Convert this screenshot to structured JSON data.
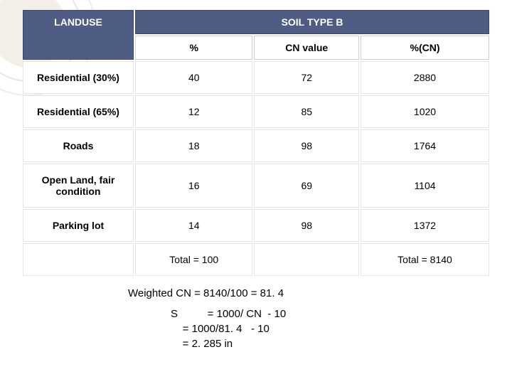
{
  "table": {
    "header_main_left": "LANDUSE",
    "header_main_right": "SOIL TYPE B",
    "subheaders": [
      "%",
      "CN value",
      "%(CN)"
    ],
    "column_widths": [
      "24%",
      "20%",
      "28%",
      "28%"
    ],
    "header_bg": "#4f5d84",
    "header_fg": "#ffffff",
    "cell_bg": "#ffffff",
    "cell_border": "#e6e4dd",
    "font_size": 14,
    "rows": [
      {
        "label": "Residential (30%)",
        "pct": "40",
        "cn": "72",
        "pcn": "2880"
      },
      {
        "label": "Residential (65%)",
        "pct": "12",
        "cn": "85",
        "pcn": "1020"
      },
      {
        "label": "Roads",
        "pct": "18",
        "cn": "98",
        "pcn": "1764"
      },
      {
        "label": "Open Land, fair condition",
        "pct": "16",
        "cn": "69",
        "pcn": "1104"
      },
      {
        "label": "Parking lot",
        "pct": "14",
        "cn": "98",
        "pcn": "1372"
      }
    ],
    "totals": {
      "pct": "Total = 100",
      "pcn": "Total = 8140"
    }
  },
  "formulas": {
    "weighted": "Weighted CN = 8140/100 = 81. 4",
    "s_block": "S          = 1000/ CN  - 10\n    = 1000/81. 4   - 10\n    = 2. 285 in"
  }
}
